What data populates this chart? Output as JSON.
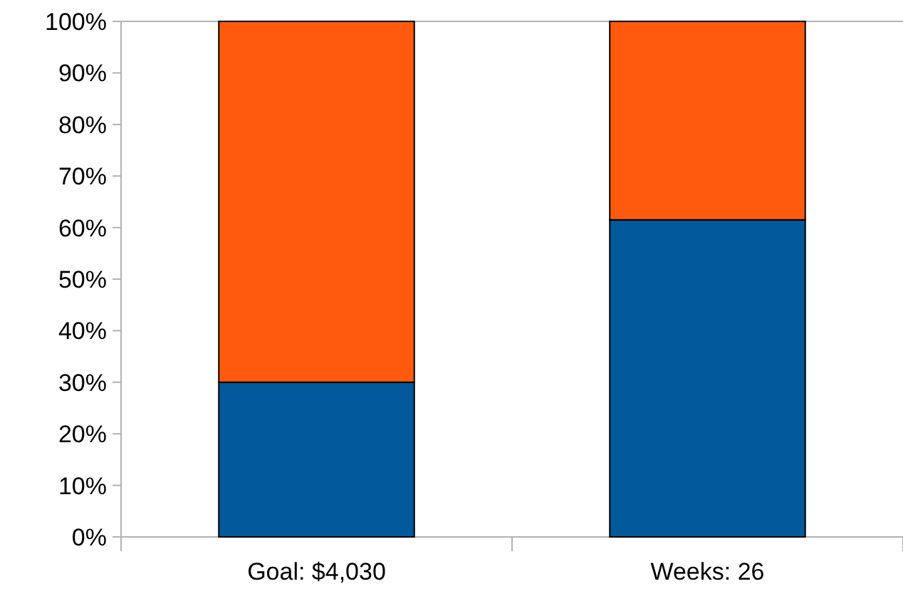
{
  "chart_data": {
    "type": "bar",
    "stacked": true,
    "categories": [
      "Goal: $4,030",
      "Weeks: 26"
    ],
    "series": [
      {
        "color": "#02599c",
        "values": [
          30,
          61.5
        ]
      },
      {
        "color": "#ff5a0d",
        "values": [
          70,
          38.5
        ]
      }
    ],
    "ylim": [
      0,
      100
    ],
    "yticks": [
      {
        "value": 0,
        "label": "0%"
      },
      {
        "value": 10,
        "label": "10%"
      },
      {
        "value": 20,
        "label": "20%"
      },
      {
        "value": 30,
        "label": "30%"
      },
      {
        "value": 40,
        "label": "40%"
      },
      {
        "value": 50,
        "label": "50%"
      },
      {
        "value": 60,
        "label": "60%"
      },
      {
        "value": 70,
        "label": "70%"
      },
      {
        "value": 80,
        "label": "80%"
      },
      {
        "value": 90,
        "label": "90%"
      },
      {
        "value": 100,
        "label": "100%"
      }
    ],
    "grid": false
  }
}
